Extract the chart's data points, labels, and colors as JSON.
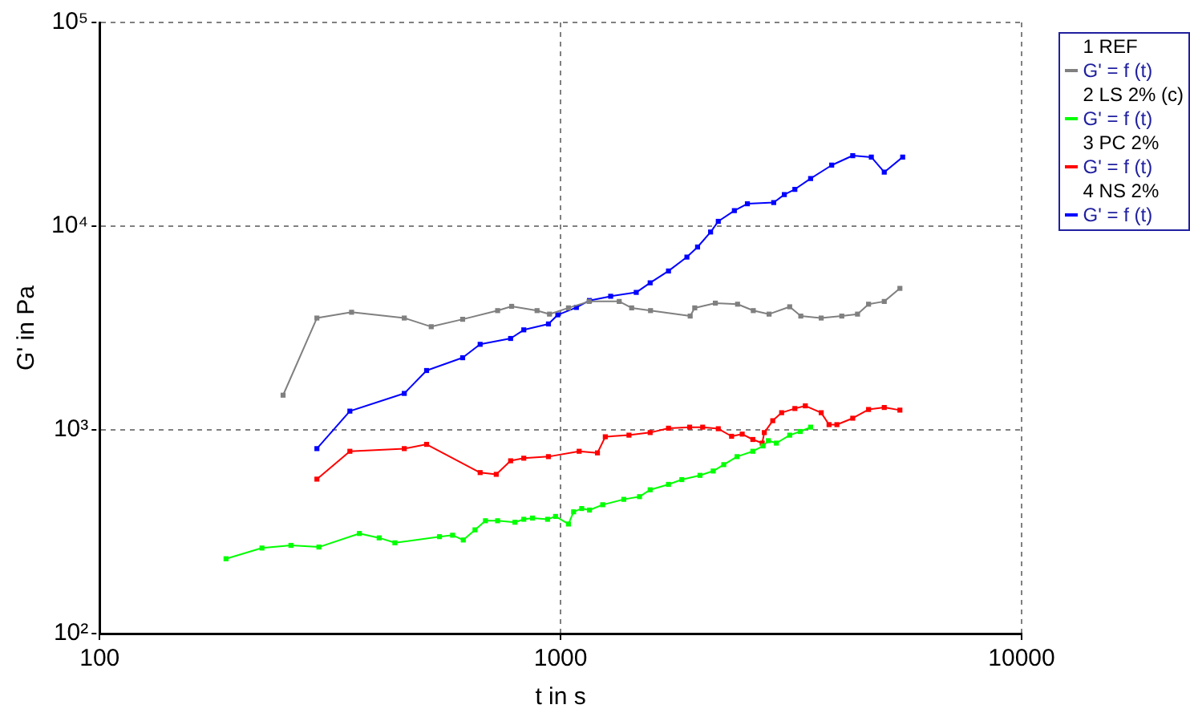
{
  "chart_data": {
    "type": "line",
    "xlabel": "t in s",
    "ylabel": "G' in Pa",
    "log": "xy",
    "grid": true,
    "legend": "top right",
    "marker": "square",
    "line_style": "solid",
    "xlim": [
      100,
      10000
    ],
    "xticks": [
      100,
      1000,
      10000
    ],
    "ylim": [
      100,
      100000
    ],
    "yticks": [
      {
        "value": 100,
        "label": "10²"
      },
      {
        "value": 1000,
        "label": "10³"
      },
      {
        "value": 10000,
        "label": "10⁴"
      },
      {
        "value": 100000,
        "label": "10⁵"
      }
    ],
    "series": [
      {
        "name": "1 REF\nG' = f (t)",
        "color": "#808080",
        "x": [
          250,
          296,
          352,
          458,
          524,
          613,
          730,
          783,
          889,
          946,
          1040,
          1153,
          1340,
          1426,
          1567,
          1910,
          1954,
          2166,
          2420,
          2618,
          2833,
          3140,
          3319,
          3675,
          4073,
          4406,
          4656,
          5036,
          5445
        ],
        "values": [
          1480,
          3540,
          3780,
          3540,
          3210,
          3490,
          3850,
          4040,
          3850,
          3700,
          3970,
          4270,
          4270,
          3970,
          3850,
          3620,
          3970,
          4190,
          4140,
          3850,
          3700,
          4020,
          3620,
          3540,
          3620,
          3700,
          4140,
          4270,
          4950
        ]
      },
      {
        "name": "2 LS 2% (c)\nG' = f (t)",
        "color": "#00ff00",
        "x": [
          188,
          225,
          260,
          299,
          366,
          404,
          437,
          546,
          583,
          615,
          652,
          687,
          730,
          796,
          832,
          869,
          937,
          975,
          1040,
          1067,
          1111,
          1155,
          1234,
          1371,
          1483,
          1564,
          1714,
          1832,
          2006,
          2143,
          2259,
          2414,
          2612,
          2749,
          2823,
          2938,
          3140,
          3311,
          3486
        ],
        "values": [
          233,
          263,
          271,
          266,
          310,
          295,
          279,
          299,
          304,
          288,
          323,
          358,
          358,
          352,
          364,
          369,
          364,
          376,
          345,
          396,
          411,
          404,
          429,
          456,
          470,
          508,
          540,
          570,
          598,
          628,
          675,
          739,
          785,
          834,
          885,
          861,
          942,
          982,
          1031
        ]
      },
      {
        "name": "3 PC 2%\nG' = f (t)",
        "color": "#ff0000",
        "x": [
          296,
          349,
          458,
          512,
          669,
          725,
          779,
          832,
          941,
          1097,
          1202,
          1250,
          1407,
          1564,
          1714,
          1905,
          2033,
          2198,
          2349,
          2477,
          2612,
          2737,
          2766,
          2885,
          3016,
          3222,
          3395,
          3675,
          3822,
          3975,
          4302,
          4656,
          5036,
          5445
        ],
        "values": [
          573,
          785,
          809,
          849,
          617,
          605,
          705,
          726,
          739,
          785,
          771,
          925,
          942,
          970,
          1019,
          1031,
          1031,
          1013,
          930,
          953,
          897,
          861,
          970,
          1109,
          1214,
          1273,
          1312,
          1214,
          1061,
          1061,
          1141,
          1259,
          1288,
          1250
        ]
      },
      {
        "name": "4 NS 2%\nG' = f (t)",
        "color": "#0000ff",
        "x": [
          296,
          349,
          458,
          512,
          613,
          669,
          779,
          832,
          941,
          986,
          1082,
          1155,
          1284,
          1459,
          1564,
          1714,
          1879,
          1982,
          2115,
          2198,
          2382,
          2542,
          2899,
          3057,
          3222,
          3486,
          3873,
          4302,
          4721,
          5036,
          5521
        ],
        "values": [
          809,
          1236,
          1510,
          1956,
          2260,
          2630,
          2810,
          3097,
          3311,
          3670,
          3990,
          4316,
          4528,
          4730,
          5270,
          6025,
          7050,
          7900,
          9360,
          10560,
          11920,
          12880,
          13060,
          14290,
          15170,
          17130,
          19920,
          22200,
          21830,
          18410,
          21830
        ]
      }
    ]
  }
}
